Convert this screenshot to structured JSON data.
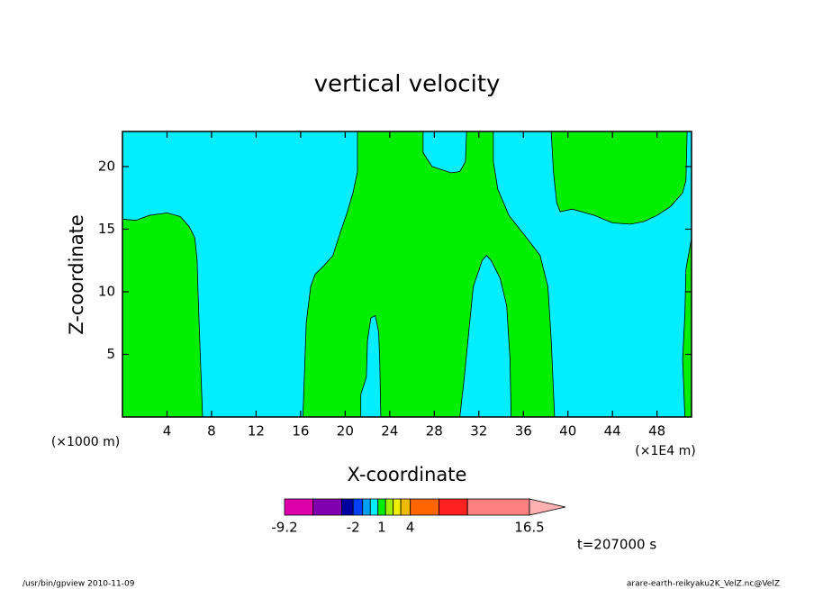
{
  "chart_data": {
    "type": "contour",
    "title": "vertical velocity",
    "x_label": "X-coordinate",
    "y_label": "Z-coordinate",
    "x_unit_left": "(×1000 m)",
    "x_unit_right": "(×1E4 m)",
    "annotation": "t=207000 s",
    "footer_left": "/usr/bin/gpview  2010-11-09",
    "footer_right": "arare-earth-reikyaku2K_VelZ.nc@VelZ",
    "xlim": [
      0,
      51.1
    ],
    "ylim": [
      0,
      22.8
    ],
    "xticks": [
      4,
      8,
      12,
      16,
      20,
      24,
      28,
      32,
      36,
      40,
      44,
      48
    ],
    "yticks": [
      5,
      10,
      15,
      20
    ],
    "background_color": "#00eeff",
    "regions": [
      {
        "color": "#00ee00",
        "x": [
          0,
          0,
          1.2,
          2.4,
          4,
          5.2,
          6,
          6.5,
          6.7,
          6.8,
          7,
          7.2
        ],
        "z": [
          0,
          15.8,
          15.7,
          16.1,
          16.3,
          16,
          15.2,
          14.3,
          12.5,
          9.6,
          4.6,
          0
        ]
      },
      {
        "color": "#00ee00",
        "x": [
          16.2,
          16.5,
          16.9,
          17.3,
          18.1,
          18.9,
          19.4,
          20.2,
          20.7,
          21.1,
          21.1,
          27,
          27,
          27.8,
          29.5,
          30.3,
          30.8,
          30.9,
          33.3,
          33.3,
          33.7,
          34.7,
          36.3,
          37.5,
          38.2,
          38.5,
          38.8,
          34.9,
          34.8,
          34.5,
          33.9,
          33.1,
          32.7,
          32.3,
          31.5,
          31.1,
          30.7,
          30.3,
          23.2,
          23.1,
          23,
          22.7,
          22.3,
          22,
          21.9,
          21.4,
          21.4
        ],
        "z": [
          0,
          7.5,
          10.4,
          11.4,
          12.1,
          12.9,
          14.3,
          16.4,
          17.9,
          19.6,
          22.8,
          22.8,
          21.1,
          20,
          19.5,
          19.6,
          20.4,
          22.8,
          22.8,
          20.4,
          18.2,
          16.1,
          14.3,
          12.9,
          10.4,
          6.1,
          0,
          0,
          4.6,
          8.9,
          11.1,
          12.5,
          12.9,
          12.5,
          10.4,
          6.8,
          3.2,
          0,
          0,
          4.6,
          6.8,
          8.1,
          7.9,
          6.1,
          3.2,
          1.8,
          0
        ]
      },
      {
        "color": "#00ee00",
        "x": [
          38.5,
          38.7,
          39,
          39.3,
          40.4,
          42.4,
          44,
          45.6,
          46.8,
          48,
          49.2,
          50.3,
          50.6,
          50.7
        ],
        "z": [
          22.8,
          19.6,
          17.1,
          16.4,
          16.6,
          16.1,
          15.5,
          15.4,
          15.6,
          16.1,
          16.8,
          17.9,
          18.9,
          22.8
        ]
      },
      {
        "color": "#00ee00",
        "x": [
          51.1,
          50.6,
          50.5,
          50.3,
          50.5,
          51.1
        ],
        "z": [
          14.3,
          11.8,
          8.2,
          4.6,
          0,
          0
        ]
      }
    ],
    "colorbar": {
      "levels": [
        -9.2,
        -6.2,
        -3.2,
        -2,
        -1,
        -0.2,
        0.6,
        1.4,
        2.2,
        3,
        4,
        7,
        10,
        16.5
      ],
      "colors": [
        "#dd00aa",
        "#8000b0",
        "#0000a0",
        "#0040ff",
        "#00a0ff",
        "#00eeff",
        "#00ee00",
        "#a0ee00",
        "#eeee00",
        "#eebb00",
        "#ff6600",
        "#ff2020",
        "#ff8080"
      ],
      "over_color": "#ffb0b0",
      "ticks": [
        -9.2,
        -2,
        1,
        4,
        16.5
      ]
    }
  }
}
